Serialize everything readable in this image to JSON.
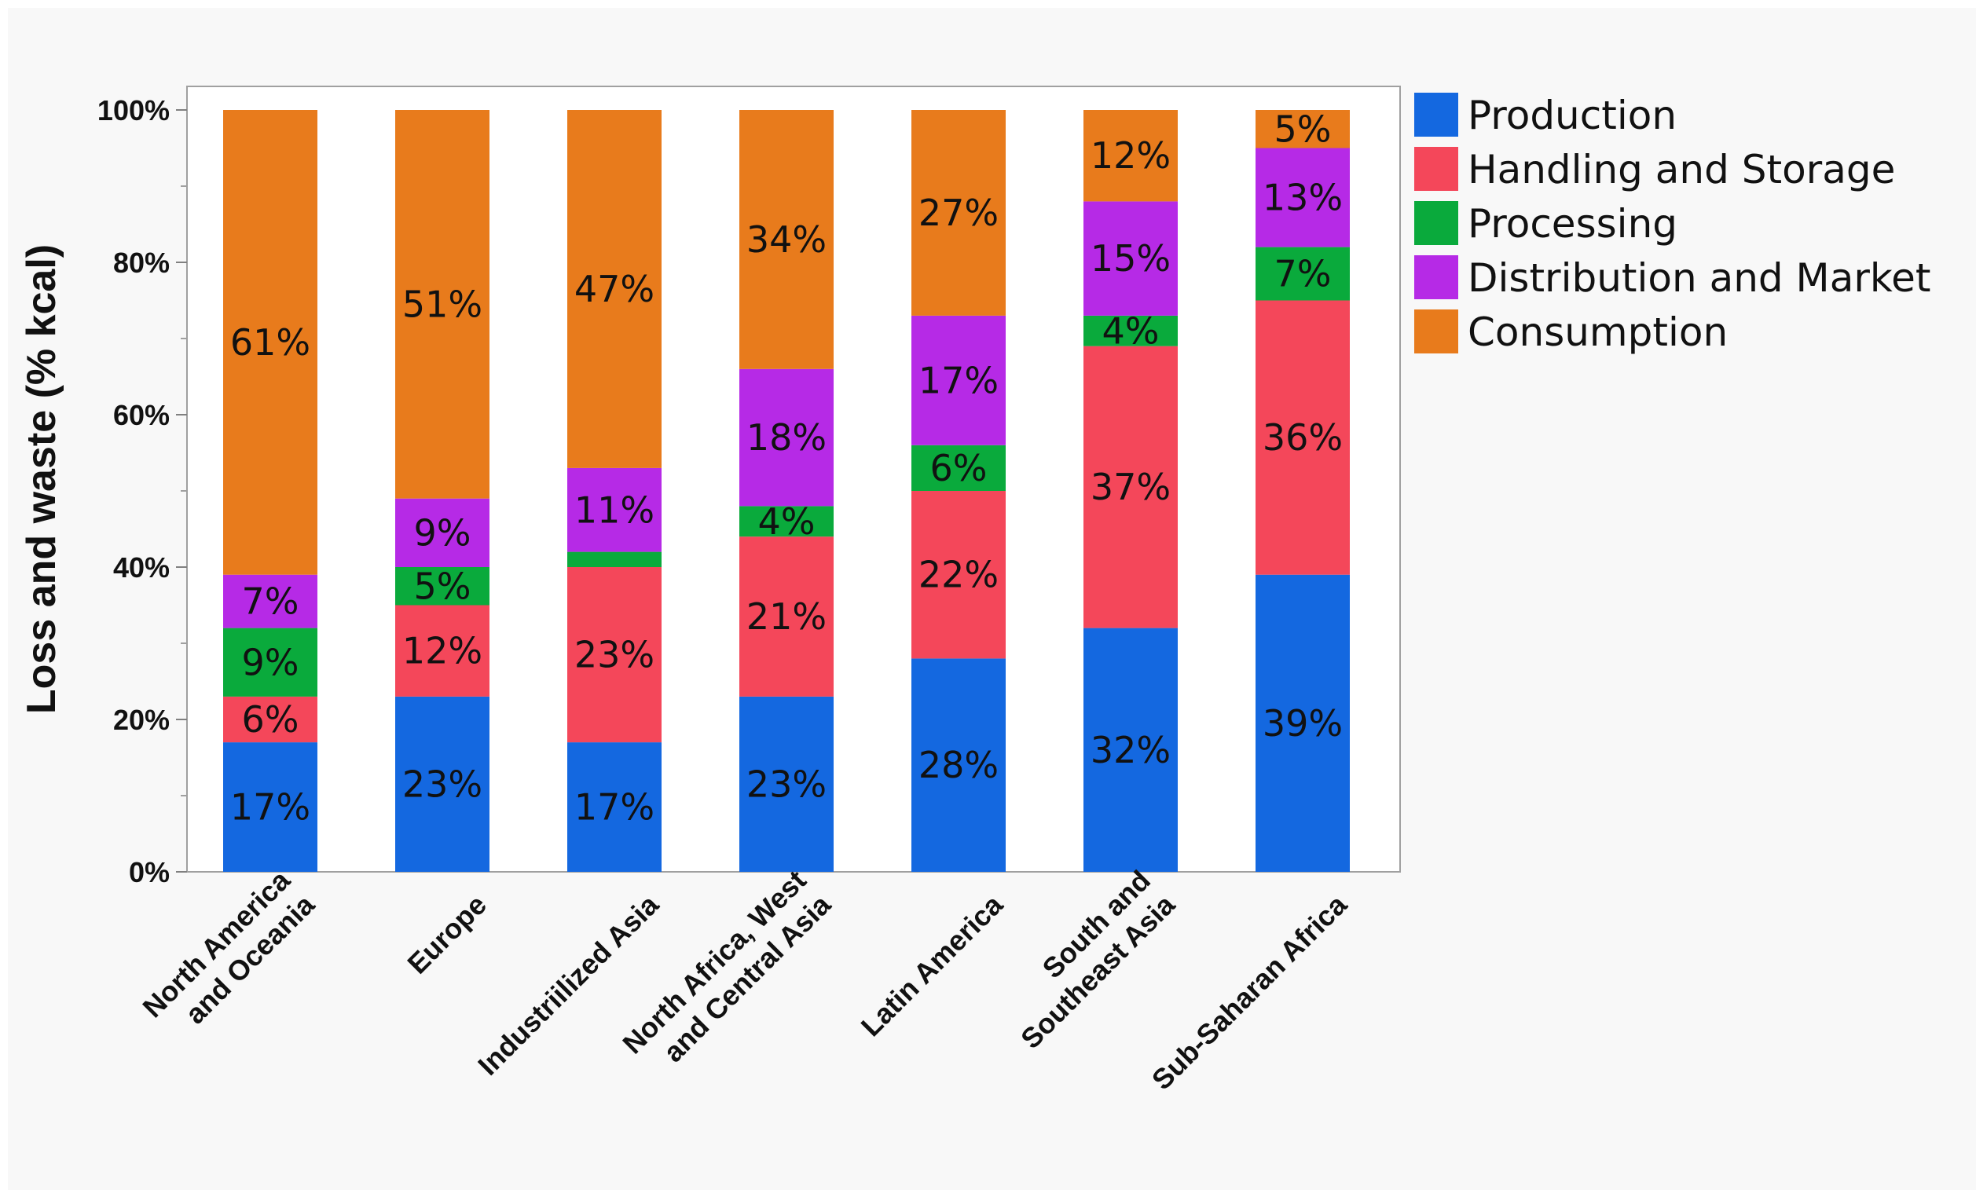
{
  "chart_data": {
    "type": "bar",
    "stacked": true,
    "title": "",
    "ylabel": "Loss and waste (% kcal)",
    "xlabel": "",
    "ylim": [
      0,
      100
    ],
    "yticks": [
      0,
      20,
      40,
      60,
      80,
      100
    ],
    "ytick_labels": [
      "0%",
      "20%",
      "40%",
      "60%",
      "80%",
      "100%"
    ],
    "legend_position": "right",
    "grid": false,
    "categories": [
      [
        "North America",
        "and Oceania"
      ],
      [
        "Europe"
      ],
      [
        "Industriilized Asia"
      ],
      [
        "North Africa, West",
        "and Central Asia"
      ],
      [
        "Latin America"
      ],
      [
        "South and",
        "Southeast Asia"
      ],
      [
        "Sub-Saharan Africa"
      ]
    ],
    "series": [
      {
        "name": "Production",
        "color": "#1468e0",
        "values": [
          17,
          23,
          17,
          23,
          28,
          32,
          39
        ],
        "labels": [
          "17%",
          "23%",
          "17%",
          "23%",
          "28%",
          "32%",
          "39%"
        ]
      },
      {
        "name": "Handling and Storage",
        "color": "#f4475a",
        "values": [
          6,
          12,
          23,
          21,
          22,
          37,
          36
        ],
        "labels": [
          "6%",
          "12%",
          "23%",
          "21%",
          "22%",
          "37%",
          "36%"
        ]
      },
      {
        "name": "Processing",
        "color": "#0aaa3c",
        "values": [
          9,
          5,
          2,
          4,
          6,
          4,
          7
        ],
        "labels": [
          "9%",
          "5%",
          "",
          "4%",
          "6%",
          "4%",
          "7%"
        ]
      },
      {
        "name": "Distribution and Market",
        "color": "#b62ae6",
        "values": [
          7,
          9,
          11,
          18,
          17,
          15,
          13
        ],
        "labels": [
          "7%",
          "9%",
          "11%",
          "18%",
          "17%",
          "15%",
          "13%"
        ]
      },
      {
        "name": "Consumption",
        "color": "#e87b1c",
        "values": [
          61,
          51,
          47,
          34,
          27,
          12,
          5
        ],
        "labels": [
          "61%",
          "51%",
          "47%",
          "34%",
          "27%",
          "12%",
          "5%"
        ]
      }
    ]
  }
}
